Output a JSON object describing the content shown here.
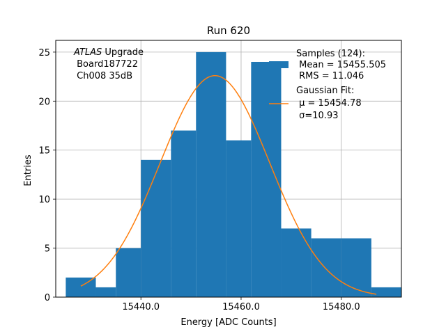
{
  "chart_data": {
    "type": "bar",
    "title": "Run 620",
    "xlabel": "Energy [ADC Counts]",
    "ylabel": "Entries",
    "xlim": [
      15423.0,
      15492.0
    ],
    "ylim": [
      0,
      26.2
    ],
    "grid": true,
    "x_ticks": [
      15440,
      15460,
      15480
    ],
    "x_tick_labels": [
      "15440.0",
      "15460.0",
      "15480.0"
    ],
    "y_ticks": [
      0,
      5,
      10,
      15,
      20,
      25
    ],
    "y_tick_labels": [
      "0",
      "5",
      "10",
      "15",
      "20",
      "25"
    ],
    "histogram": {
      "name": "Samples",
      "color": "#1f77b4",
      "bins": [
        {
          "x0": 15425,
          "x1": 15431,
          "count": 2
        },
        {
          "x0": 15431,
          "x1": 15435,
          "count": 1
        },
        {
          "x0": 15435,
          "x1": 15440,
          "count": 5
        },
        {
          "x0": 15440,
          "x1": 15446,
          "count": 14
        },
        {
          "x0": 15446,
          "x1": 15451,
          "count": 17
        },
        {
          "x0": 15451,
          "x1": 15457,
          "count": 25
        },
        {
          "x0": 15457,
          "x1": 15462,
          "count": 16
        },
        {
          "x0": 15462,
          "x1": 15468,
          "count": 24
        },
        {
          "x0": 15468,
          "x1": 15474,
          "count": 7
        },
        {
          "x0": 15474,
          "x1": 15480,
          "count": 6
        },
        {
          "x0": 15480,
          "x1": 15486,
          "count": 6
        },
        {
          "x0": 15486,
          "x1": 15486,
          "count": 0
        },
        {
          "x0": 15486,
          "x1": 15492,
          "count": 1
        }
      ]
    },
    "fit": {
      "name": "Gaussian Fit",
      "color": "#ff7f0e",
      "mu": 15454.78,
      "sigma": 10.93,
      "amplitude": 22.6,
      "x_range": [
        15428,
        15487
      ]
    },
    "legend": {
      "placement": "top-right",
      "entries": [
        {
          "lines": [
            "Samples (124):",
            " Mean = 15455.505",
            " RMS = 11.046"
          ]
        },
        {
          "lines": [
            "Gaussian Fit:",
            " μ = 15454.78",
            " σ=10.93"
          ]
        }
      ]
    },
    "annotation": {
      "placement": "top-left",
      "lines": [
        "ATLAS Upgrade",
        " Board187722",
        " Ch008 35dB"
      ]
    }
  }
}
